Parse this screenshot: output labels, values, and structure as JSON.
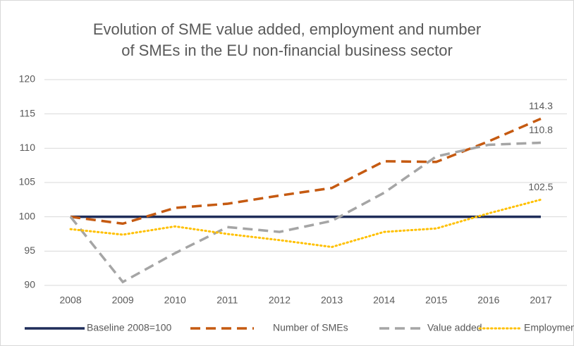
{
  "chart_data": {
    "type": "line",
    "title": [
      "Evolution of SME value added, employment and number",
      "of SMEs in the EU non-financial business sector"
    ],
    "categories": [
      "2008",
      "2009",
      "2010",
      "2011",
      "2012",
      "2013",
      "2014",
      "2015",
      "2016",
      "2017"
    ],
    "series": [
      {
        "name": "Baseline 2008=100",
        "color": "#1f2d5a",
        "style": "solid",
        "values": [
          100,
          100,
          100,
          100,
          100,
          100,
          100,
          100,
          100,
          100
        ]
      },
      {
        "name": "Number of SMEs",
        "color": "#c55a11",
        "style": "dashed",
        "label_last": true,
        "values": [
          100,
          99,
          101.3,
          101.9,
          103.1,
          104.2,
          108.1,
          108.0,
          111.0,
          114.3
        ]
      },
      {
        "name": "Value added",
        "color": "#a5a5a5",
        "style": "dashed",
        "label_last": true,
        "values": [
          100,
          90.5,
          94.7,
          98.5,
          97.8,
          99.4,
          103.5,
          108.8,
          110.5,
          110.8
        ]
      },
      {
        "name": "Employment",
        "color": "#ffc000",
        "style": "dotted",
        "label_last": true,
        "values": [
          98.2,
          97.4,
          98.6,
          97.5,
          96.6,
          95.6,
          97.8,
          98.3,
          100.5,
          102.5
        ]
      }
    ],
    "ylim": [
      90,
      120
    ],
    "yticks": [
      90,
      95,
      100,
      105,
      110,
      115,
      120
    ],
    "grid": true,
    "legend": "bottom"
  }
}
